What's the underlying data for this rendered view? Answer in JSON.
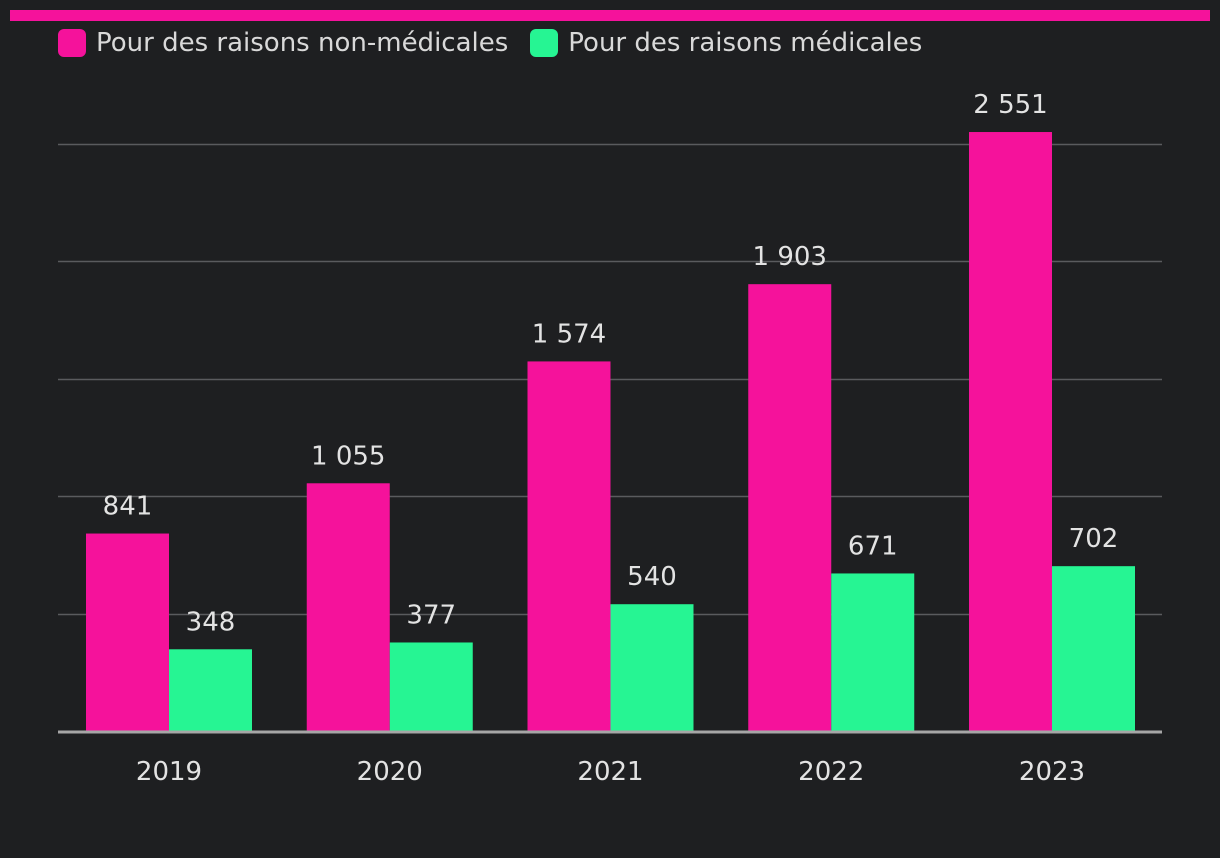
{
  "colors": {
    "background": "#1e1f21",
    "accent_bar": "#f5129b",
    "series_non_medical": "#f5129b",
    "series_medical": "#26f593",
    "gridline": "#5a5b5e",
    "baseline": "#a6a6a6",
    "text": "#e3e3e3"
  },
  "legend": {
    "items": [
      {
        "label": "Pour des raisons non-médicales",
        "color": "#f5129b"
      },
      {
        "label": "Pour des raisons médicales",
        "color": "#26f593"
      }
    ]
  },
  "chart_data": {
    "type": "bar",
    "categories": [
      "2019",
      "2020",
      "2021",
      "2022",
      "2023"
    ],
    "series": [
      {
        "name": "Pour des raisons non-médicales",
        "values": [
          841,
          1055,
          1574,
          1903,
          2551
        ],
        "labels": [
          "841",
          "1 055",
          "1 574",
          "1 903",
          "2 551"
        ],
        "color": "#f5129b"
      },
      {
        "name": "Pour des raisons médicales",
        "values": [
          348,
          377,
          540,
          671,
          702
        ],
        "labels": [
          "348",
          "377",
          "540",
          "671",
          "702"
        ],
        "color": "#26f593"
      }
    ],
    "ylim": [
      0,
      2500
    ],
    "gridlines": [
      500,
      1000,
      1500,
      2000,
      2500
    ],
    "grid": true,
    "legend_position": "top-left",
    "title": "",
    "xlabel": "",
    "ylabel": ""
  }
}
